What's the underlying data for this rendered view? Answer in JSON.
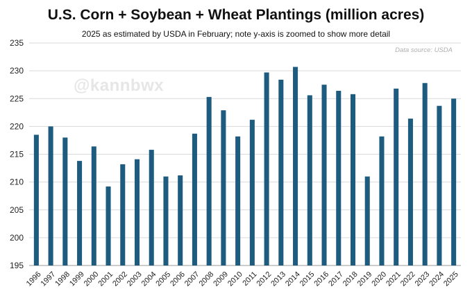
{
  "chart_data": {
    "type": "bar",
    "title": "U.S. Corn + Soybean + Wheat Plantings (million acres)",
    "subtitle": "2025 as estimated by USDA in February; note y-axis is zoomed to show more detail",
    "source_note": "Data source: USDA",
    "watermark": "@kannbwx",
    "xlabel": "",
    "ylabel": "",
    "ylim": [
      195,
      235
    ],
    "yticks": [
      195,
      200,
      205,
      210,
      215,
      220,
      225,
      230,
      235
    ],
    "grid": true,
    "legend": "none",
    "bar_color": "#1d5c7e",
    "categories": [
      "1996",
      "1997",
      "1998",
      "1999",
      "2000",
      "2001",
      "2002",
      "2003",
      "2004",
      "2005",
      "2006",
      "2007",
      "2008",
      "2009",
      "2010",
      "2011",
      "2012",
      "2013",
      "2014",
      "2015",
      "2016",
      "2017",
      "2018",
      "2019",
      "2020",
      "2021",
      "2022",
      "2023",
      "2024",
      "2025"
    ],
    "values": [
      218.5,
      220.0,
      218.0,
      213.8,
      216.4,
      209.2,
      213.2,
      214.1,
      215.8,
      211.0,
      211.2,
      218.7,
      225.3,
      222.9,
      218.2,
      221.2,
      229.7,
      228.4,
      230.7,
      225.6,
      227.5,
      226.4,
      225.8,
      211.0,
      218.2,
      226.8,
      221.4,
      227.8,
      223.7,
      225.0
    ]
  }
}
